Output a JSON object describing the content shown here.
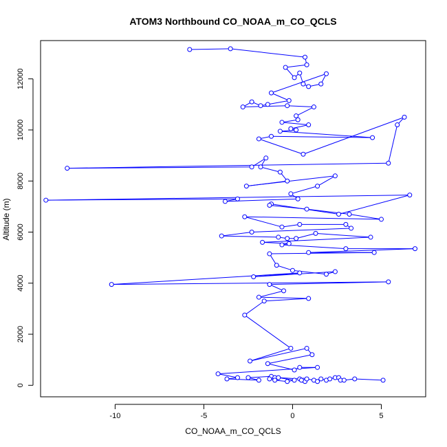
{
  "chart_data": {
    "type": "line",
    "title": "ATOM3 Northbound CO_NOAA_m_CO_QCLS",
    "xlabel": "CO_NOAA_m_CO_QCLS",
    "ylabel": "Altitude (m)",
    "xlim": [
      -14.2,
      7.5
    ],
    "ylim": [
      -450,
      13500
    ],
    "x_ticks": [
      -10,
      -5,
      0,
      5
    ],
    "x_tick_labels": [
      "-10",
      "-5",
      "0",
      "5"
    ],
    "y_ticks": [
      0,
      2000,
      4000,
      6000,
      8000,
      10000,
      12000
    ],
    "y_tick_labels": [
      "0",
      "2000",
      "4000",
      "6000",
      "8000",
      "10000",
      "12000"
    ],
    "grid": false,
    "legend": "none",
    "colors": {
      "series": "#0000ff",
      "axis": "#000000",
      "background": "#ffffff"
    },
    "markers": "open-circle",
    "series": [
      {
        "points": [
          [
            -5.8,
            13150
          ],
          [
            -3.5,
            13180
          ],
          [
            0.7,
            12850
          ],
          [
            0.8,
            12550
          ],
          [
            -0.4,
            12450
          ],
          [
            0.1,
            12050
          ],
          [
            0.4,
            12230
          ],
          [
            0.6,
            11800
          ],
          [
            0.9,
            11700
          ],
          [
            1.6,
            11800
          ],
          [
            1.9,
            12200
          ],
          [
            -1.2,
            11450
          ],
          [
            -0.2,
            11150
          ],
          [
            -1.4,
            11000
          ],
          [
            -1.8,
            10950
          ],
          [
            -2.3,
            11100
          ],
          [
            -2.8,
            10900
          ],
          [
            -0.3,
            10950
          ],
          [
            1.2,
            10900
          ],
          [
            0.2,
            10550
          ],
          [
            0.3,
            10400
          ],
          [
            -0.6,
            10300
          ],
          [
            0.9,
            10200
          ],
          [
            -0.1,
            10050
          ],
          [
            0.2,
            10000
          ],
          [
            -0.7,
            9950
          ],
          [
            4.5,
            9700
          ],
          [
            -1.2,
            9750
          ],
          [
            -1.9,
            9650
          ],
          [
            0.6,
            9050
          ],
          [
            6.3,
            10500
          ],
          [
            5.9,
            10200
          ],
          [
            5.4,
            8700
          ],
          [
            -12.7,
            8500
          ],
          [
            -2.3,
            8550
          ],
          [
            -1.5,
            8900
          ],
          [
            -1.8,
            8550
          ],
          [
            -0.7,
            8350
          ],
          [
            -0.3,
            8000
          ],
          [
            -2.6,
            7800
          ],
          [
            2.4,
            8200
          ],
          [
            1.4,
            7800
          ],
          [
            -0.1,
            7500
          ],
          [
            0.3,
            7300
          ],
          [
            -3.8,
            7200
          ],
          [
            -3.1,
            7300
          ],
          [
            -13.9,
            7250
          ],
          [
            6.6,
            7450
          ],
          [
            2.6,
            6700
          ],
          [
            -1.2,
            7100
          ],
          [
            -1.3,
            7050
          ],
          [
            0.8,
            6900
          ],
          [
            3.2,
            6700
          ],
          [
            5.0,
            6500
          ],
          [
            -2.7,
            6600
          ],
          [
            -0.6,
            6200
          ],
          [
            0.4,
            6300
          ],
          [
            3.0,
            6300
          ],
          [
            3.3,
            6150
          ],
          [
            -2.3,
            6000
          ],
          [
            -4.0,
            5850
          ],
          [
            -0.8,
            5800
          ],
          [
            -0.3,
            5750
          ],
          [
            0.2,
            5750
          ],
          [
            1.3,
            5950
          ],
          [
            4.4,
            5800
          ],
          [
            -1.7,
            5600
          ],
          [
            -0.2,
            5550
          ],
          [
            -0.6,
            5500
          ],
          [
            3.0,
            5350
          ],
          [
            6.9,
            5350
          ],
          [
            0.9,
            5200
          ],
          [
            4.6,
            5200
          ],
          [
            -1.3,
            5150
          ],
          [
            -0.9,
            4700
          ],
          [
            0.0,
            4500
          ],
          [
            1.9,
            4350
          ],
          [
            2.4,
            4450
          ],
          [
            -2.2,
            4250
          ],
          [
            0.4,
            4400
          ],
          [
            -10.2,
            3950
          ],
          [
            5.4,
            4050
          ],
          [
            -1.3,
            3950
          ],
          [
            -0.5,
            3700
          ],
          [
            -1.9,
            3450
          ],
          [
            0.9,
            3400
          ],
          [
            -1.6,
            3300
          ],
          [
            -2.7,
            2750
          ],
          [
            -0.1,
            1450
          ],
          [
            -2.4,
            950
          ],
          [
            0.8,
            1450
          ],
          [
            1.1,
            1200
          ],
          [
            -1.4,
            850
          ],
          [
            0.1,
            600
          ],
          [
            0.4,
            700
          ],
          [
            1.4,
            700
          ],
          [
            -4.2,
            450
          ],
          [
            -3.1,
            300
          ],
          [
            -3.7,
            250
          ],
          [
            -1.9,
            200
          ],
          [
            -2.5,
            300
          ],
          [
            -1.2,
            350
          ],
          [
            -1.0,
            300
          ],
          [
            -1.3,
            250
          ],
          [
            -1.0,
            200
          ],
          [
            -0.3,
            150
          ],
          [
            0.1,
            200
          ],
          [
            -0.8,
            300
          ],
          [
            0.4,
            250
          ],
          [
            0.6,
            200
          ],
          [
            0.7,
            150
          ],
          [
            0.5,
            200
          ],
          [
            0.8,
            250
          ],
          [
            1.2,
            200
          ],
          [
            1.4,
            150
          ],
          [
            1.6,
            250
          ],
          [
            1.9,
            200
          ],
          [
            2.1,
            250
          ],
          [
            2.4,
            300
          ],
          [
            2.6,
            300
          ],
          [
            2.7,
            200
          ],
          [
            2.9,
            200
          ],
          [
            3.5,
            250
          ],
          [
            5.1,
            200
          ]
        ]
      }
    ]
  }
}
